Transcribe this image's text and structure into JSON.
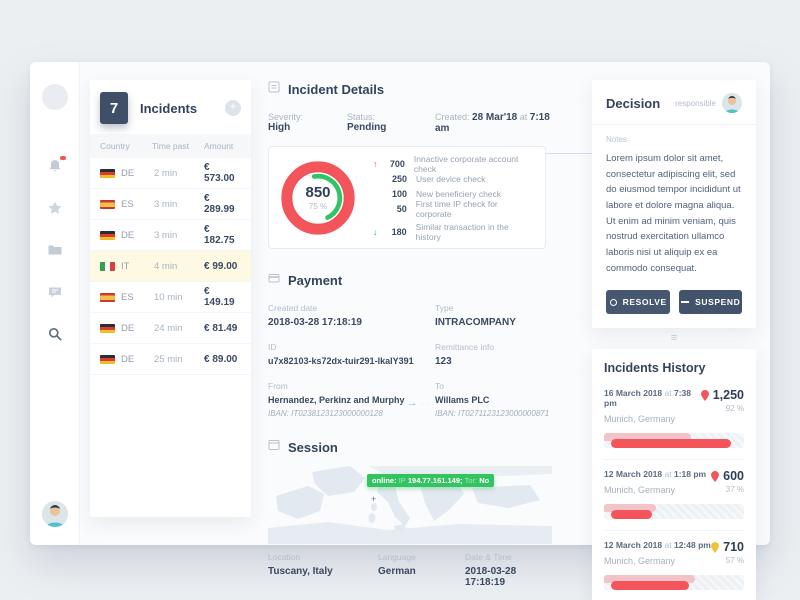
{
  "colors": {
    "accent_red": "#f4555a",
    "accent_green": "#2fc465",
    "accent_yellow": "#f2c335",
    "navy": "#3f4f68",
    "selected_row": "#fdf9e3",
    "online_badge": "#33c361"
  },
  "sidebar": {
    "icons": [
      "notifications-bell",
      "favorites-star",
      "documents-folder",
      "messages-chat",
      "search"
    ]
  },
  "incidents_panel": {
    "count": "7",
    "title": "Incidents",
    "add_label": "+",
    "columns": {
      "country": "Country",
      "time": "Time past",
      "amount": "Amount"
    },
    "rows": [
      {
        "flag": "de",
        "country": "DE",
        "time": "2 min",
        "amount": "€ 573.00"
      },
      {
        "flag": "es",
        "country": "ES",
        "time": "3 min",
        "amount": "€ 289.99"
      },
      {
        "flag": "de",
        "country": "DE",
        "time": "3 min",
        "amount": "€ 182.75"
      },
      {
        "flag": "it",
        "country": "IT",
        "time": "4 min",
        "amount": "€ 99.00"
      },
      {
        "flag": "es",
        "country": "ES",
        "time": "10 min",
        "amount": "€ 149.19"
      },
      {
        "flag": "de",
        "country": "DE",
        "time": "24 min",
        "amount": "€ 81.49"
      },
      {
        "flag": "de",
        "country": "DE",
        "time": "25 min",
        "amount": "€ 89.00"
      }
    ]
  },
  "incident_details": {
    "title": "Incident Details",
    "severity_label": "Severity:",
    "severity": "High",
    "status_label": "Status:",
    "status": "Pending",
    "created_label": "Created:",
    "created_date": "28 Mar'18",
    "created_sep": "at",
    "created_time": "7:18 am",
    "score": {
      "value": "850",
      "percent": "75 %"
    },
    "checks": [
      {
        "trend": "up",
        "value": "700",
        "label": "Innactive corporate account check"
      },
      {
        "trend": "",
        "value": "250",
        "label": "User device check"
      },
      {
        "trend": "",
        "value": "100",
        "label": "New beneficiery check"
      },
      {
        "trend": "",
        "value": "50",
        "label": "First time IP check for corporate"
      },
      {
        "trend": "down",
        "value": "180",
        "label": "Similar transaction in the history"
      }
    ]
  },
  "payment": {
    "title": "Payment",
    "created": {
      "label": "Created date",
      "value": "2018-03-28 17:18:19"
    },
    "type": {
      "label": "Type",
      "value": "INTRACOMPANY"
    },
    "id": {
      "label": "ID",
      "value": "u7x82103-ks72dx-tuir291-lkalY391"
    },
    "remittance": {
      "label": "Remittance info",
      "value": "123"
    },
    "from": {
      "label": "From",
      "name": "Hernandez, Perkinz and Murphy",
      "iban": "IBAN: IT0238123123000000128"
    },
    "to": {
      "label": "To",
      "name": "Willams PLC",
      "iban": "IBAN: IT0271123123000000871"
    }
  },
  "session": {
    "title": "Session",
    "badge": {
      "online": "online:",
      "ip_label": "IP",
      "ip": "194.77.161.149;",
      "tor_label": "Tor:",
      "tor": "No"
    },
    "location": {
      "label": "Location",
      "value": "Tuscany, Italy"
    },
    "language": {
      "label": "Language",
      "value": "German"
    },
    "datetime": {
      "label": "Date & Time",
      "value": "2018-03-28 17:18:19"
    }
  },
  "decision": {
    "title": "Decision",
    "responsible_label": "responsible",
    "notes_label": "Notes",
    "notes": "Lorem ipsum dolor sit amet, consectetur adipiscing elit, sed do eiusmod tempor incididunt ut labore et dolore magna aliqua. Ut enim ad minim veniam, quis nostrud exercitation ullamco laboris nisi ut aliquip ex ea commodo consequat.",
    "resolve_label": "RESOLVE",
    "suspend_label": "SUSPEND"
  },
  "history": {
    "title": "Incidents History",
    "items": [
      {
        "date": "16 March 2018",
        "sep": "at",
        "time": "7:38 pm",
        "place": "Munich, Germany",
        "value": "1,250",
        "percent": "92 %",
        "pin": "red",
        "bar1": 62,
        "bar2": 86
      },
      {
        "date": "12 March 2018",
        "sep": "at",
        "time": "1:18 pm",
        "place": "Munich, Germany",
        "value": "600",
        "percent": "37 %",
        "pin": "red",
        "bar1": 37,
        "bar2": 29
      },
      {
        "date": "12 March 2018",
        "sep": "at",
        "time": "12:48 pm",
        "place": "Munich, Germany",
        "value": "710",
        "percent": "57 %",
        "pin": "yellow",
        "bar1": 65,
        "bar2": 56
      }
    ]
  }
}
